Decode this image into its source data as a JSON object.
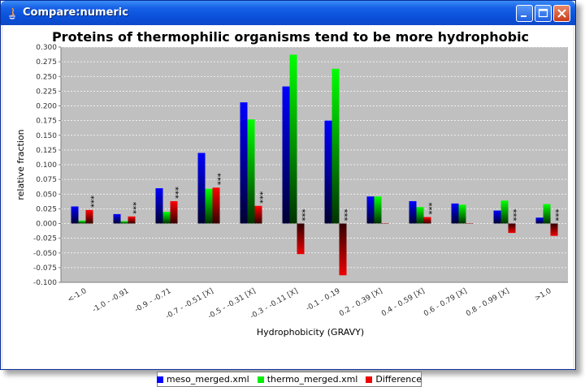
{
  "window": {
    "title": "Compare:numeric",
    "buttons": [
      "minimize",
      "maximize",
      "close"
    ]
  },
  "colors": {
    "meso": "#0000ff",
    "thermo": "#00ee00",
    "difference": "#ee0000",
    "plot_background": "#c0c0c0",
    "titlebar": "#0a4fd8"
  },
  "chart_data": {
    "type": "bar",
    "title": "Proteins of thermophilic organisms tend to be more hydrophobic",
    "xlabel": "Hydrophobicity (GRAVY)",
    "ylabel": "relative fraction",
    "ylim": [
      -0.1,
      0.3
    ],
    "yticks": [
      "0.300",
      "0.275",
      "0.250",
      "0.225",
      "0.200",
      "0.175",
      "0.150",
      "0.125",
      "0.100",
      "0.075",
      "0.050",
      "0.025",
      "0.000",
      "-0.025",
      "-0.050",
      "-0.075",
      "-0.100"
    ],
    "categories": [
      "<-1.0",
      "-1.0 - -0.91",
      "-0.9 - -0.71",
      "-0.7 - -0.51 [X]",
      "-0.5 - -0.31 [X]",
      "-0.3 - -0.11 [X]",
      "-0.1 - 0.19",
      "0.2 - 0.39 [X]",
      "0.4 - 0.59 [X]",
      "0.6 - 0.79 [X]",
      "0.8 - 0.99 [X]",
      ">1.0"
    ],
    "series": [
      {
        "name": "meso_merged.xml",
        "values": [
          0.029,
          0.016,
          0.06,
          0.12,
          0.206,
          0.233,
          0.175,
          0.046,
          0.038,
          0.034,
          0.022,
          0.01
        ]
      },
      {
        "name": "thermo_merged.xml",
        "values": [
          0.005,
          0.004,
          0.02,
          0.059,
          0.177,
          0.287,
          0.263,
          0.046,
          0.028,
          0.032,
          0.039,
          0.033
        ]
      },
      {
        "name": "Difference",
        "values": [
          0.023,
          0.012,
          0.038,
          0.061,
          0.03,
          -0.052,
          -0.088,
          0.0,
          0.011,
          0.0,
          -0.016,
          -0.021
        ]
      }
    ],
    "significance": [
      "***",
      "***",
      "***",
      "***",
      "***",
      "***",
      "***",
      "",
      "***",
      "",
      "***",
      "***"
    ],
    "grid": true,
    "legend_position": "bottom"
  }
}
